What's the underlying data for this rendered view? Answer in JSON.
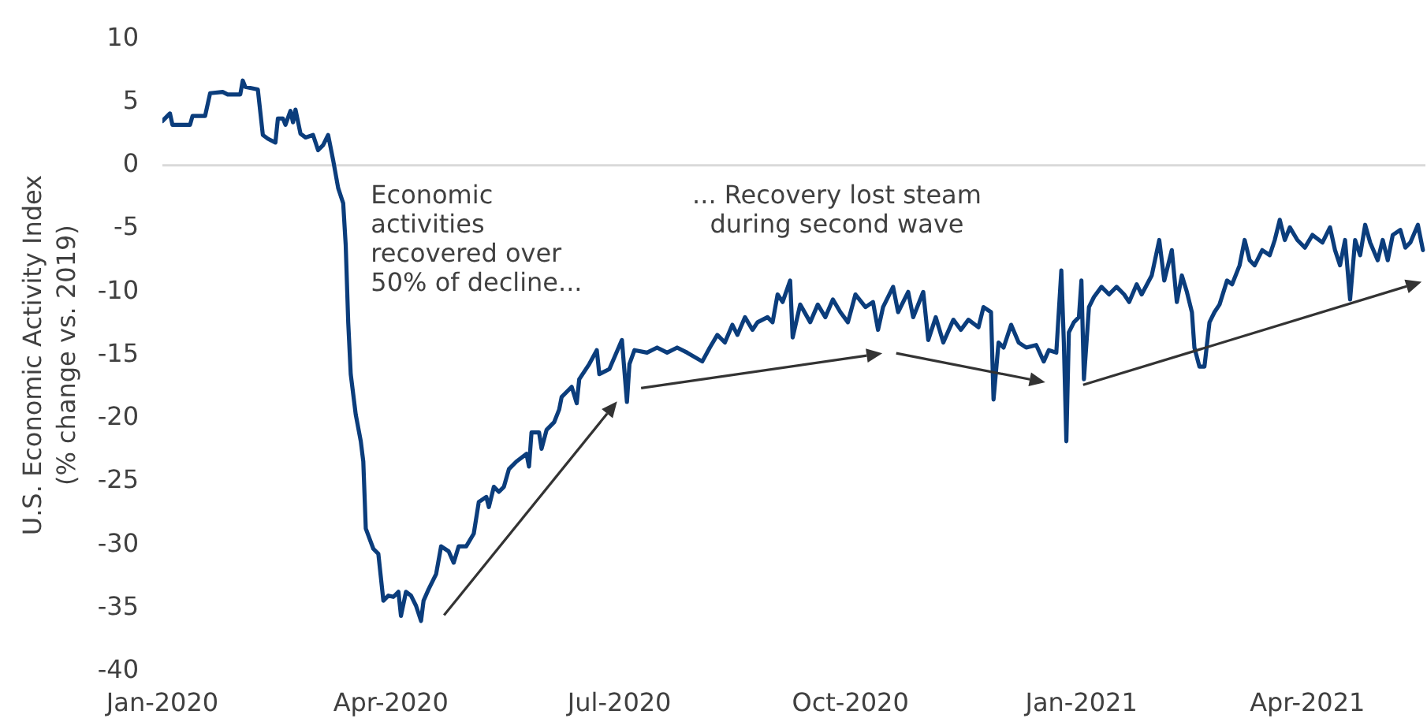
{
  "chart_data": {
    "type": "line",
    "ylabel": "U.S. Economic Activity Index\n(% change vs. 2019)",
    "annotations": [
      "Economic\nactivities\nrecovered over\n50% of decline...",
      "... Recovery lost steam\nduring second wave"
    ],
    "color": "#0b3d7c",
    "legend": false,
    "x": [
      "2020-01-01",
      "2020-01-04",
      "2020-01-05",
      "2020-01-12",
      "2020-01-13",
      "2020-01-18",
      "2020-01-20",
      "2020-01-25",
      "2020-01-27",
      "2020-02-01",
      "2020-02-02",
      "2020-02-03",
      "2020-02-08",
      "2020-02-10",
      "2020-02-12",
      "2020-02-15",
      "2020-02-16",
      "2020-02-18",
      "2020-02-19",
      "2020-02-21",
      "2020-02-22",
      "2020-02-23",
      "2020-02-25",
      "2020-02-27",
      "2020-03-01",
      "2020-03-03",
      "2020-03-05",
      "2020-03-07",
      "2020-03-09",
      "2020-03-11",
      "2020-03-13",
      "2020-03-14",
      "2020-03-15",
      "2020-03-16",
      "2020-03-18",
      "2020-03-20",
      "2020-03-21",
      "2020-03-22",
      "2020-03-25",
      "2020-03-27",
      "2020-03-29",
      "2020-03-31",
      "2020-04-02",
      "2020-04-04",
      "2020-04-05",
      "2020-04-07",
      "2020-04-09",
      "2020-04-11",
      "2020-04-13",
      "2020-04-14",
      "2020-04-16",
      "2020-04-19",
      "2020-04-21",
      "2020-04-24",
      "2020-04-26",
      "2020-04-28",
      "2020-05-01",
      "2020-05-04",
      "2020-05-06",
      "2020-05-09",
      "2020-05-10",
      "2020-05-12",
      "2020-05-14",
      "2020-05-16",
      "2020-05-18",
      "2020-05-21",
      "2020-05-25",
      "2020-05-26",
      "2020-05-27",
      "2020-05-30",
      "2020-05-31",
      "2020-06-02",
      "2020-06-05",
      "2020-06-07",
      "2020-06-08",
      "2020-06-12",
      "2020-06-14",
      "2020-06-15",
      "2020-06-19",
      "2020-06-22",
      "2020-06-23",
      "2020-06-27",
      "2020-07-02",
      "2020-07-04",
      "2020-07-05",
      "2020-07-07",
      "2020-07-12",
      "2020-07-16",
      "2020-07-20",
      "2020-07-24",
      "2020-07-28",
      "2020-08-03",
      "2020-08-06",
      "2020-08-09",
      "2020-08-12",
      "2020-08-15",
      "2020-08-17",
      "2020-08-20",
      "2020-08-23",
      "2020-08-25",
      "2020-08-29",
      "2020-08-31",
      "2020-09-02",
      "2020-09-04",
      "2020-09-07",
      "2020-09-08",
      "2020-09-11",
      "2020-09-15",
      "2020-09-18",
      "2020-09-21",
      "2020-09-24",
      "2020-09-27",
      "2020-09-30",
      "2020-10-03",
      "2020-10-07",
      "2020-10-10",
      "2020-10-12",
      "2020-10-14",
      "2020-10-18",
      "2020-10-20",
      "2020-10-24",
      "2020-10-26",
      "2020-10-30",
      "2020-11-01",
      "2020-11-04",
      "2020-11-07",
      "2020-11-11",
      "2020-11-14",
      "2020-11-17",
      "2020-11-21",
      "2020-11-23",
      "2020-11-26",
      "2020-11-27",
      "2020-11-29",
      "2020-12-01",
      "2020-12-04",
      "2020-12-07",
      "2020-12-10",
      "2020-12-14",
      "2020-12-17",
      "2020-12-19",
      "2020-12-22",
      "2020-12-24",
      "2020-12-25",
      "2020-12-26",
      "2020-12-27",
      "2020-12-29",
      "2020-12-31",
      "2021-01-01",
      "2021-01-02",
      "2021-01-04",
      "2021-01-06",
      "2021-01-09",
      "2021-01-12",
      "2021-01-15",
      "2021-01-18",
      "2021-01-20",
      "2021-01-23",
      "2021-01-25",
      "2021-01-29",
      "2021-02-01",
      "2021-02-03",
      "2021-02-06",
      "2021-02-08",
      "2021-02-10",
      "2021-02-12",
      "2021-02-14",
      "2021-02-15",
      "2021-02-17",
      "2021-02-19",
      "2021-02-21",
      "2021-02-23",
      "2021-02-25",
      "2021-02-28",
      "2021-03-02",
      "2021-03-05",
      "2021-03-07",
      "2021-03-09",
      "2021-03-11",
      "2021-03-14",
      "2021-03-17",
      "2021-03-19",
      "2021-03-21",
      "2021-03-23",
      "2021-03-25",
      "2021-03-28",
      "2021-03-31",
      "2021-04-03",
      "2021-04-07",
      "2021-04-10",
      "2021-04-12",
      "2021-04-14",
      "2021-04-16",
      "2021-04-18",
      "2021-04-20",
      "2021-04-22",
      "2021-04-24",
      "2021-04-26",
      "2021-04-29",
      "2021-05-01",
      "2021-05-03",
      "2021-05-05",
      "2021-05-08",
      "2021-05-10",
      "2021-05-12",
      "2021-05-15",
      "2021-05-17"
    ],
    "values": [
      3.5,
      4.1,
      3.2,
      3.2,
      3.9,
      3.9,
      5.7,
      5.8,
      5.6,
      5.6,
      6.7,
      6.2,
      6.0,
      2.4,
      2.1,
      1.8,
      3.7,
      3.7,
      3.2,
      4.3,
      3.4,
      4.4,
      2.5,
      2.2,
      2.4,
      1.2,
      1.6,
      2.4,
      0.4,
      -1.8,
      -3.0,
      -6.3,
      -12.4,
      -16.5,
      -19.7,
      -21.8,
      -23.4,
      -28.7,
      -30.3,
      -30.7,
      -34.4,
      -34.0,
      -34.1,
      -33.7,
      -35.6,
      -33.7,
      -34.0,
      -34.8,
      -36.0,
      -34.4,
      -33.5,
      -32.3,
      -30.1,
      -30.5,
      -31.4,
      -30.1,
      -30.1,
      -29.1,
      -26.6,
      -26.2,
      -27.0,
      -25.4,
      -25.8,
      -25.4,
      -24.0,
      -23.4,
      -22.8,
      -23.8,
      -21.1,
      -21.1,
      -22.4,
      -20.9,
      -20.3,
      -19.3,
      -18.3,
      -17.5,
      -18.8,
      -16.9,
      -15.7,
      -14.6,
      -16.5,
      -16.1,
      -13.8,
      -18.7,
      -15.7,
      -14.6,
      -14.8,
      -14.4,
      -14.8,
      -14.4,
      -14.8,
      -15.5,
      -14.4,
      -13.4,
      -14.0,
      -12.6,
      -13.4,
      -12.0,
      -13.0,
      -12.4,
      -12.0,
      -12.4,
      -10.2,
      -10.8,
      -9.1,
      -13.6,
      -11.0,
      -12.4,
      -11.0,
      -12.0,
      -10.6,
      -11.6,
      -12.4,
      -10.2,
      -11.2,
      -10.8,
      -13.0,
      -11.2,
      -9.6,
      -11.6,
      -10.0,
      -12.0,
      -10.0,
      -13.8,
      -12.0,
      -14.0,
      -12.2,
      -13.0,
      -12.2,
      -12.8,
      -11.2,
      -11.6,
      -18.5,
      -14.0,
      -14.4,
      -12.6,
      -14.0,
      -14.4,
      -14.2,
      -15.5,
      -14.6,
      -14.8,
      -8.3,
      -14.0,
      -21.8,
      -13.2,
      -12.4,
      -12.0,
      -9.1,
      -16.9,
      -11.2,
      -10.4,
      -9.6,
      -10.2,
      -9.6,
      -10.2,
      -10.8,
      -9.4,
      -10.2,
      -8.7,
      -5.9,
      -9.1,
      -6.7,
      -10.8,
      -8.7,
      -10.0,
      -11.6,
      -14.4,
      -15.9,
      -15.9,
      -12.4,
      -11.6,
      -11.0,
      -9.1,
      -9.4,
      -7.9,
      -5.9,
      -7.5,
      -7.9,
      -6.7,
      -7.1,
      -5.9,
      -4.3,
      -5.9,
      -4.9,
      -5.9,
      -6.5,
      -5.5,
      -6.1,
      -4.9,
      -6.7,
      -7.9,
      -5.9,
      -10.6,
      -5.9,
      -7.1,
      -4.7,
      -6.1,
      -7.5,
      -5.9,
      -7.5,
      -5.5,
      -5.1,
      -6.5,
      -6.1,
      -4.7,
      -6.7
    ],
    "xlim": [
      "2020-01-01",
      "2021-05-18"
    ],
    "xticks": [
      {
        "value": "2020-01-01",
        "label": "Jan-2020"
      },
      {
        "value": "2020-04-01",
        "label": "Apr-2020"
      },
      {
        "value": "2020-07-01",
        "label": "Jul-2020"
      },
      {
        "value": "2020-10-01",
        "label": "Oct-2020"
      },
      {
        "value": "2021-01-01",
        "label": "Jan-2021"
      },
      {
        "value": "2021-04-01",
        "label": "Apr-2021"
      }
    ],
    "ylim": [
      -40,
      10
    ],
    "yticks": [
      -40,
      -35,
      -30,
      -25,
      -20,
      -15,
      -10,
      -5,
      0,
      5,
      10
    ],
    "ref_lines": [
      {
        "axis": "y",
        "value": 0,
        "color": "#d9d9d9"
      }
    ]
  }
}
